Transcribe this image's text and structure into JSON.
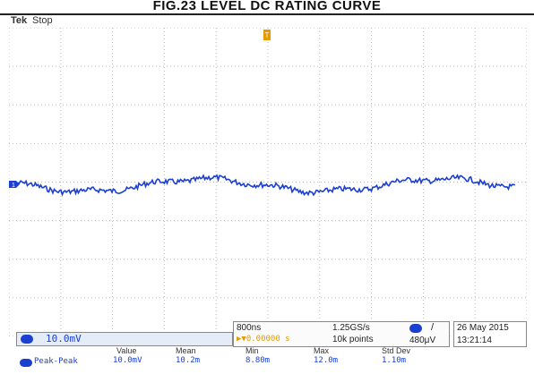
{
  "page": {
    "title": "FIG.23 LEVEL DC RATING CURVE"
  },
  "scope": {
    "brand": "Tek",
    "state": "Stop",
    "channel": {
      "label": "10.0mV",
      "marker": "1",
      "color": "#1b3fd0"
    },
    "trigger": {
      "marker": "T",
      "color": "#e59a00"
    },
    "timebase": {
      "time_per_div": "800ns",
      "sample_rate": "1.25GS/s",
      "trigger_position": "▶▼0.00000 s",
      "record_length": "10k points",
      "trigger_slope": "/",
      "trigger_level": "480μV"
    },
    "datetime": {
      "date": "26 May 2015",
      "time": "13:21:14"
    },
    "measurement": {
      "headers": [
        "Value",
        "Mean",
        "Min",
        "Max",
        "Std Dev"
      ],
      "name": "Peak-Peak",
      "values": [
        "10.0mV",
        "10.2m",
        "8.80m",
        "12.0m",
        "1.10m"
      ]
    }
  }
}
